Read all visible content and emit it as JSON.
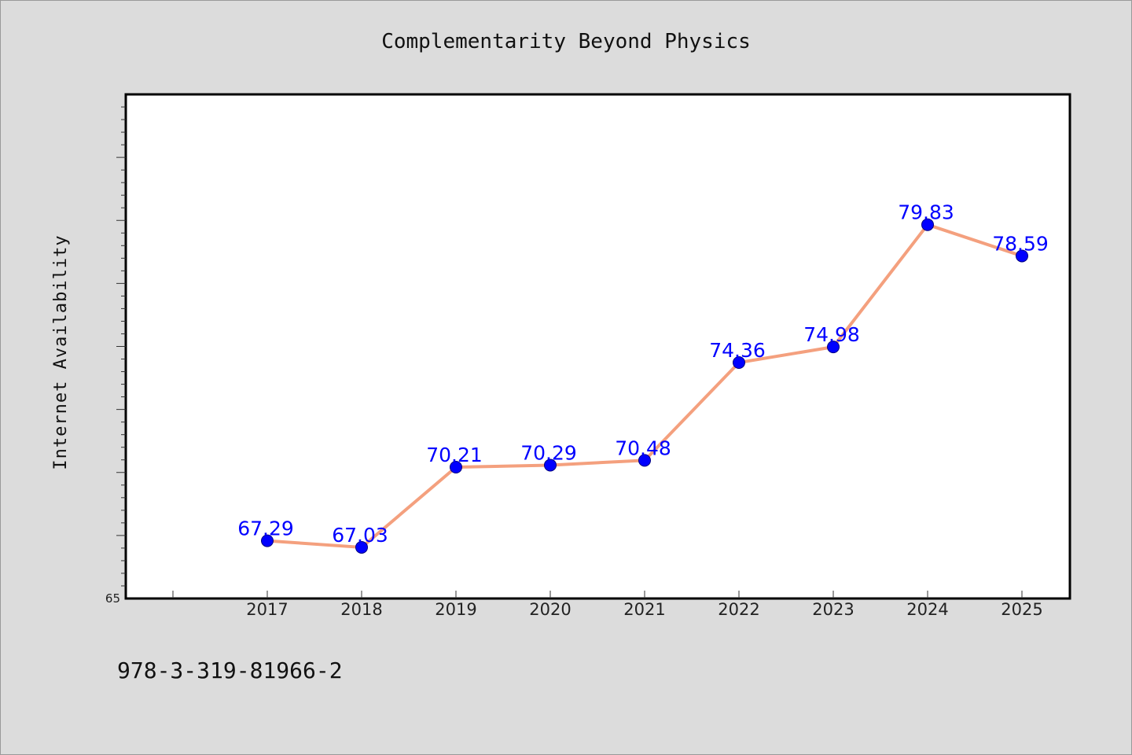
{
  "chart_data": {
    "type": "line",
    "title": "Complementarity Beyond Physics",
    "xlabel": "",
    "ylabel": "Internet Availability",
    "categories": [
      "2017",
      "2018",
      "2019",
      "2020",
      "2021",
      "2022",
      "2023",
      "2024",
      "2025"
    ],
    "series": [
      {
        "values": [
          67.29,
          67.03,
          70.21,
          70.29,
          70.48,
          74.36,
          74.98,
          79.83,
          78.59
        ],
        "data_labels": [
          "67.29",
          "67.03",
          "70.21",
          "70.29",
          "70.48",
          "74.36",
          "74.98",
          "79.83",
          "78.59"
        ]
      }
    ],
    "ylim": [
      65,
      85
    ],
    "yticks_labeled": [
      "65"
    ],
    "grid": false,
    "legend": "none",
    "colors": {
      "line": "#f4a07e",
      "marker": "#0000ff",
      "data_label": "#0000ff",
      "plot_background": "#ffffff",
      "page_background": "#dcdcdc"
    }
  },
  "footer": {
    "isbn": "978-3-319-81966-2"
  }
}
